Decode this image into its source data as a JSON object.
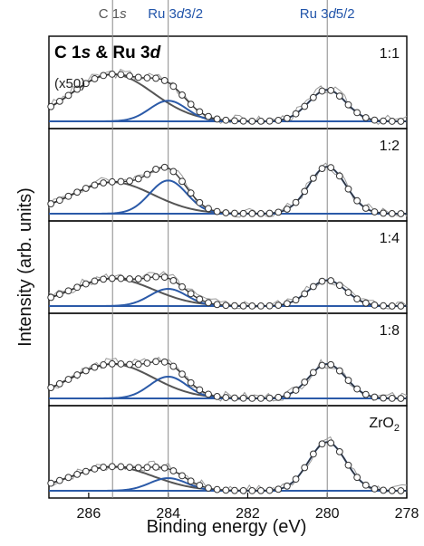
{
  "chart_data": {
    "type": "line",
    "title": "C 1s & Ru 3d",
    "title_parts": {
      "c": "C 1",
      "s": "s",
      "amp": " & Ru 3",
      "d": "d"
    },
    "xlabel": "Binding energy (eV)",
    "ylabel": "Intensity (arb. units)",
    "xlim": [
      287,
      278
    ],
    "x_reversed": true,
    "x_ticks": [
      286,
      284,
      282,
      280,
      278
    ],
    "grid": false,
    "scale_note": "(x50)",
    "reference_lines": [
      {
        "label": "C 1s",
        "label_main": "C 1",
        "label_italic": "s",
        "label_tail": "",
        "energy": 285.4,
        "color": "#555555"
      },
      {
        "label": "Ru 3d3/2",
        "label_main": "Ru 3",
        "label_italic": "d",
        "label_tail": "3/2",
        "energy": 284.0,
        "color": "#2255aa"
      },
      {
        "label": "Ru 3d5/2",
        "label_main": "Ru 3",
        "label_italic": "d",
        "label_tail": "5/2",
        "energy": 280.0,
        "color": "#2255aa"
      }
    ],
    "colors": {
      "ru_fit": "#2b5aa8",
      "c_fit": "#555555",
      "envelope": "#333333",
      "raw": "#9a9a9a",
      "points": "#ffffff"
    },
    "panels": [
      {
        "label": "1:1",
        "label_main": "1:1",
        "label_sub": "",
        "c1s_peak": {
          "center": 285.4,
          "height": 0.82,
          "fwhm": 2.4
        },
        "ru_3d32_peak": {
          "center": 284.0,
          "height": 0.36,
          "fwhm": 1.1
        },
        "ru_3d52_peak": {
          "center": 280.0,
          "height": 0.55,
          "fwhm": 1.1
        }
      },
      {
        "label": "1:2",
        "label_main": "1:2",
        "label_sub": "",
        "c1s_peak": {
          "center": 285.4,
          "height": 0.55,
          "fwhm": 2.4
        },
        "ru_3d32_peak": {
          "center": 284.0,
          "height": 0.58,
          "fwhm": 1.1
        },
        "ru_3d52_peak": {
          "center": 280.0,
          "height": 0.82,
          "fwhm": 1.1
        }
      },
      {
        "label": "1:4",
        "label_main": "1:4",
        "label_sub": "",
        "c1s_peak": {
          "center": 285.4,
          "height": 0.48,
          "fwhm": 2.4
        },
        "ru_3d32_peak": {
          "center": 284.0,
          "height": 0.3,
          "fwhm": 1.1
        },
        "ru_3d52_peak": {
          "center": 280.0,
          "height": 0.45,
          "fwhm": 1.1
        }
      },
      {
        "label": "1:8",
        "label_main": "1:8",
        "label_sub": "",
        "c1s_peak": {
          "center": 285.4,
          "height": 0.6,
          "fwhm": 2.4
        },
        "ru_3d32_peak": {
          "center": 284.0,
          "height": 0.38,
          "fwhm": 1.1
        },
        "ru_3d52_peak": {
          "center": 280.0,
          "height": 0.6,
          "fwhm": 1.1
        }
      },
      {
        "label": "ZrO2",
        "label_main": "ZrO",
        "label_sub": "2",
        "c1s_peak": {
          "center": 285.4,
          "height": 0.42,
          "fwhm": 2.4
        },
        "ru_3d32_peak": {
          "center": 284.0,
          "height": 0.22,
          "fwhm": 1.1
        },
        "ru_3d52_peak": {
          "center": 280.0,
          "height": 0.85,
          "fwhm": 1.1
        }
      }
    ]
  }
}
